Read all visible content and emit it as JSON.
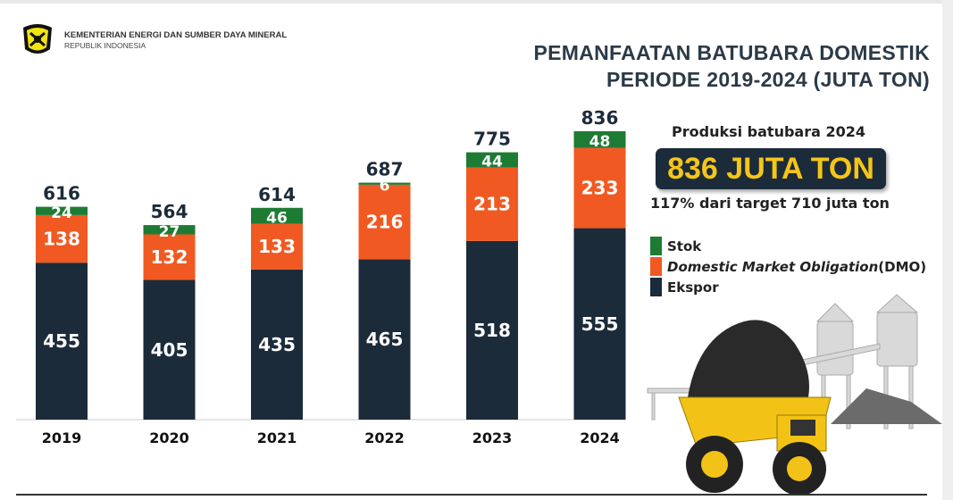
{
  "header": {
    "org_name": "KEMENTERIAN ENERGI DAN SUMBER DAYA MINERAL",
    "org_sub": "REPUBLIK INDONESIA",
    "title_line1": "PEMANFAATAN BATUBARA DOMESTIK",
    "title_line2": "PERIODE 2019-2024 (JUTA TON)"
  },
  "summary": {
    "label": "Produksi batubara 2024",
    "big": "836 JUTA TON",
    "target": "117% dari target 710 juta ton"
  },
  "legend": [
    {
      "label": "Stok",
      "color": "#1e7b34"
    },
    {
      "label": "Domestic Market Obligation",
      "suffix": "(DMO)",
      "color": "#f05a22"
    },
    {
      "label": "Ekspor",
      "color": "#1c2b3a"
    }
  ],
  "chart_data": {
    "type": "bar",
    "stacked": true,
    "title": "PEMANFAATAN BATUBARA DOMESTIK PERIODE 2019-2024 (JUTA TON)",
    "categories": [
      "2019",
      "2020",
      "2021",
      "2022",
      "2023",
      "2024"
    ],
    "series": [
      {
        "name": "Ekspor",
        "color": "#1c2b3a",
        "values": [
          455,
          405,
          435,
          465,
          518,
          555
        ]
      },
      {
        "name": "Domestic Market Obligation (DMO)",
        "color": "#f05a22",
        "values": [
          138,
          132,
          133,
          216,
          213,
          233
        ]
      },
      {
        "name": "Stok",
        "color": "#1e7b34",
        "values": [
          24,
          27,
          46,
          6,
          44,
          48
        ]
      }
    ],
    "totals": [
      "616",
      "564",
      "614",
      "687",
      "775",
      "836"
    ],
    "ylim": [
      0,
      836
    ],
    "grid": false,
    "legend_position": "right"
  }
}
